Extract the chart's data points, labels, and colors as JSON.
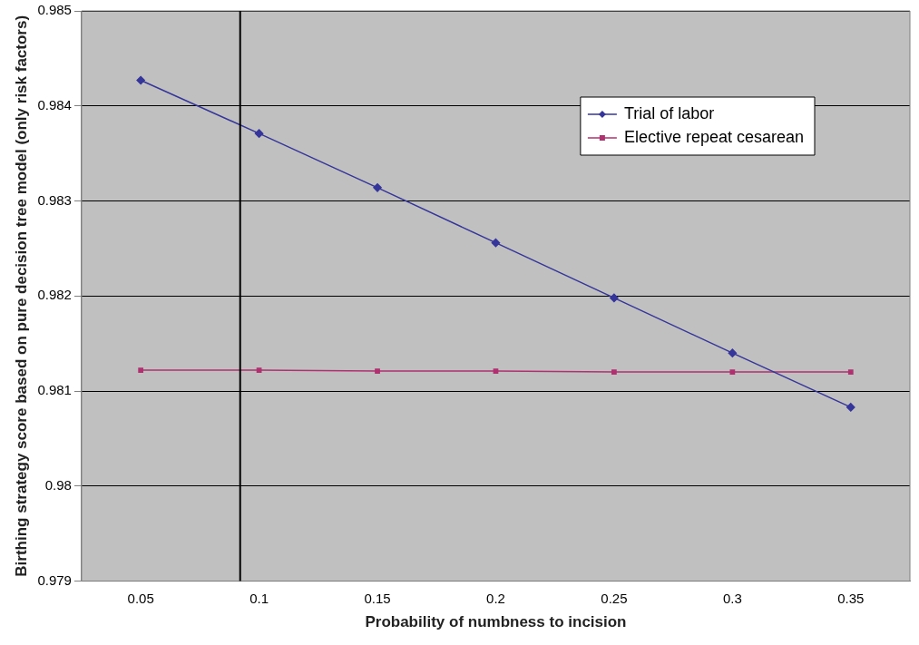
{
  "chart_data": {
    "type": "line",
    "xlabel": "Probability of numbness to incision",
    "ylabel": "Birthing strategy score based on pure decision tree model (only risk factors)",
    "x": [
      0.05,
      0.1,
      0.15,
      0.2,
      0.25,
      0.3,
      0.35
    ],
    "series": [
      {
        "name": "Trial of labor",
        "color": "#35359a",
        "marker": "diamond",
        "values": [
          0.98427,
          0.98371,
          0.98314,
          0.98256,
          0.98198,
          0.9814,
          0.98083
        ]
      },
      {
        "name": "Elective repeat cesarean",
        "color": "#b03070",
        "marker": "square",
        "values": [
          0.98122,
          0.98122,
          0.98121,
          0.98121,
          0.9812,
          0.9812,
          0.9812
        ]
      }
    ],
    "xlim": [
      0.025,
      0.375
    ],
    "xticks": [
      0.05,
      0.1,
      0.15,
      0.2,
      0.25,
      0.3,
      0.35
    ],
    "ylim": [
      0.979,
      0.985
    ],
    "yticks": [
      0.979,
      0.98,
      0.981,
      0.982,
      0.983,
      0.984,
      0.985
    ],
    "ref_lines": [
      {
        "axis": "x",
        "value": 0.092,
        "color": "#000000"
      }
    ],
    "grid": "y",
    "legend": "top right",
    "line_style": "solid"
  }
}
